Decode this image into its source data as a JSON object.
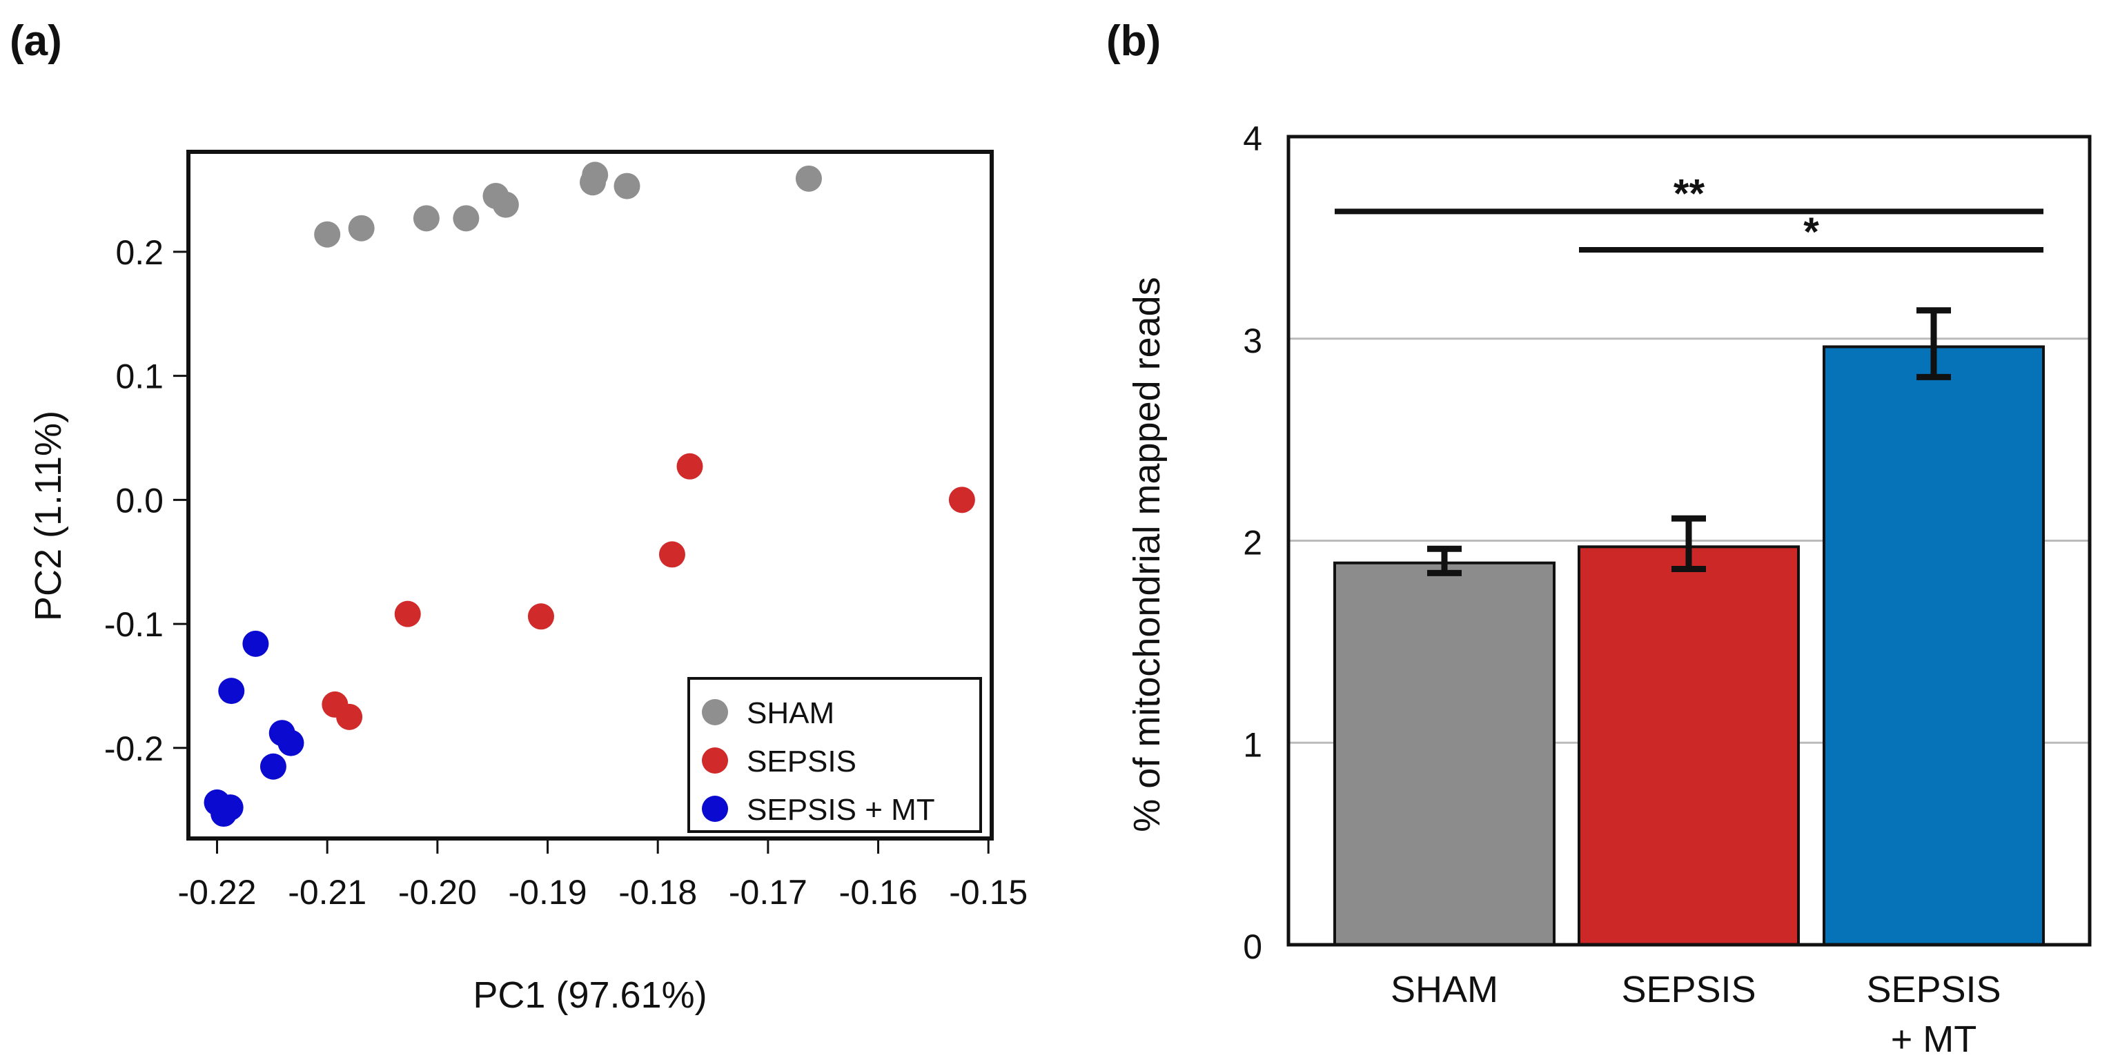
{
  "chart_data": [
    {
      "panel_label": "(a)",
      "type": "scatter",
      "xlabel": "PC1 (97.61%)",
      "ylabel": "PC2 (1.11%)",
      "xlim": [
        -0.2226,
        -0.1497
      ],
      "ylim": [
        -0.273,
        0.2806
      ],
      "xticks": [
        -0.22,
        -0.21,
        -0.2,
        -0.19,
        -0.18,
        -0.17,
        -0.16,
        -0.15
      ],
      "xtick_labels": [
        "-0.22",
        "-0.21",
        "-0.20",
        "-0.19",
        "-0.18",
        "-0.17",
        "-0.16",
        "-0.15"
      ],
      "yticks": [
        0.2,
        0.1,
        0.0,
        -0.1,
        -0.2
      ],
      "ytick_labels": [
        "0.2",
        "0.1",
        "0.0",
        "-0.1",
        "-0.2"
      ],
      "grid": false,
      "legend_position": "bottom-right",
      "series": [
        {
          "name": "SHAM",
          "color": "#8f8f8f",
          "points": [
            [
              -0.21,
              0.214
            ],
            [
              -0.2069,
              0.219
            ],
            [
              -0.201,
              0.227
            ],
            [
              -0.1974,
              0.227
            ],
            [
              -0.1947,
              0.245
            ],
            [
              -0.1938,
              0.238
            ],
            [
              -0.1859,
              0.256
            ],
            [
              -0.1857,
              0.262
            ],
            [
              -0.1828,
              0.253
            ],
            [
              -0.1663,
              0.259
            ]
          ]
        },
        {
          "name": "SEPSIS",
          "color": "#d02a2a",
          "points": [
            [
              -0.1771,
              0.027
            ],
            [
              -0.1524,
              0.0
            ],
            [
              -0.1787,
              -0.044
            ],
            [
              -0.2027,
              -0.092
            ],
            [
              -0.1906,
              -0.094
            ],
            [
              -0.2093,
              -0.165
            ],
            [
              -0.208,
              -0.175
            ]
          ]
        },
        {
          "name": "SEPSIS + MT",
          "color": "#0a0ad0",
          "points": [
            [
              -0.2165,
              -0.116
            ],
            [
              -0.2187,
              -0.154
            ],
            [
              -0.2141,
              -0.188
            ],
            [
              -0.2133,
              -0.196
            ],
            [
              -0.2149,
              -0.215
            ],
            [
              -0.22,
              -0.244
            ],
            [
              -0.2188,
              -0.248
            ],
            [
              -0.2194,
              -0.253
            ]
          ]
        }
      ]
    },
    {
      "panel_label": "(b)",
      "type": "bar",
      "categories": [
        "SHAM",
        "SEPSIS",
        "SEPSIS\n+ MT"
      ],
      "category_lines": [
        [
          "SHAM"
        ],
        [
          "SEPSIS"
        ],
        [
          "SEPSIS",
          "+ MT"
        ]
      ],
      "values": [
        1.89,
        1.97,
        2.96
      ],
      "error_low": [
        1.84,
        1.86,
        2.81
      ],
      "error_high": [
        1.96,
        2.11,
        3.14
      ],
      "colors": [
        "#8c8c8c",
        "#cc2828",
        "#0672b8"
      ],
      "xlabel": "",
      "ylabel": "% of mitochondrial mapped reads",
      "ylim": [
        0,
        4
      ],
      "yticks": [
        0,
        1,
        2,
        3,
        4
      ],
      "ytick_labels": [
        "0",
        "1",
        "2",
        "3",
        "4"
      ],
      "grid": true,
      "significance": [
        {
          "from": 0,
          "to": 2,
          "y": 3.63,
          "label": "**"
        },
        {
          "from": 1,
          "to": 2,
          "y": 3.44,
          "label": "*"
        }
      ]
    }
  ]
}
